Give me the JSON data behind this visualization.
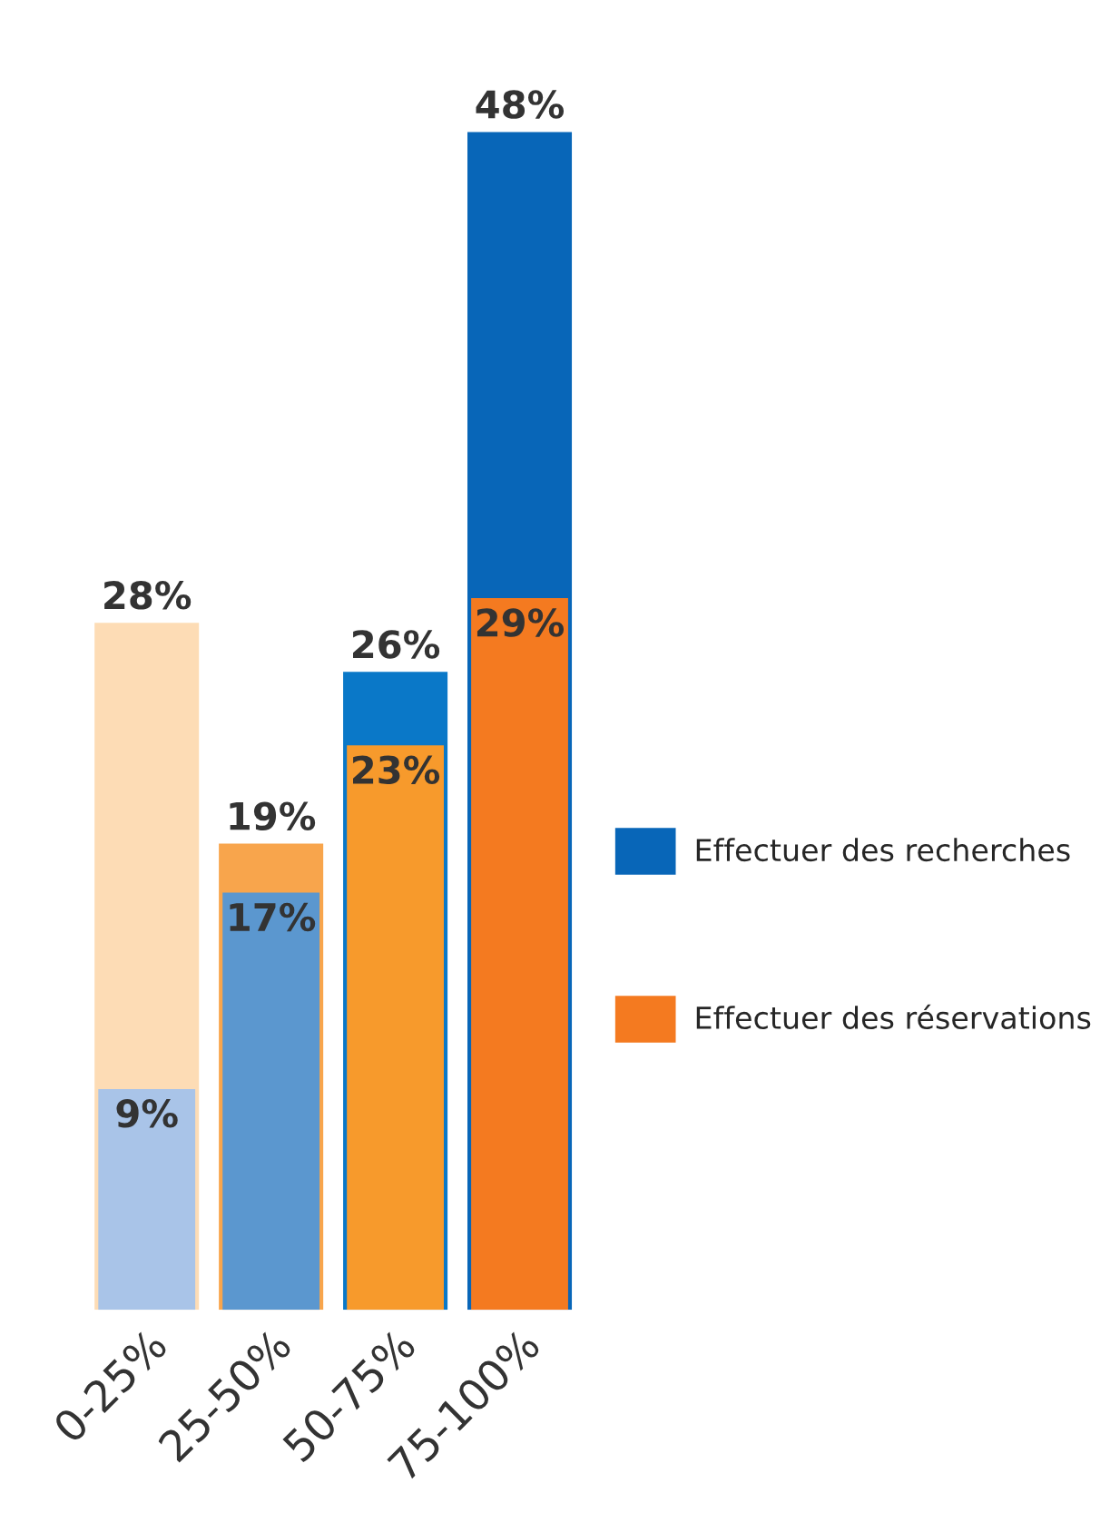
{
  "chart_data": {
    "type": "bar",
    "categories": [
      "0-25%",
      "25-50%",
      "50-75%",
      "75-100%"
    ],
    "series": [
      {
        "name": "Effectuer des recherches",
        "color": "#0866b8",
        "colors": [
          "#a9c4e8",
          "#5b97cf",
          "#0a78c8",
          "#0866b8"
        ],
        "values": [
          9,
          17,
          26,
          48
        ],
        "value_labels": [
          "9%",
          "17%",
          "26%",
          "48%"
        ]
      },
      {
        "name": "Effectuer des réservations",
        "color": "#f47a20",
        "colors": [
          "#fddcb5",
          "#f8a54c",
          "#f79a2c",
          "#f47a20"
        ],
        "values": [
          28,
          19,
          23,
          29
        ],
        "value_labels": [
          "28%",
          "19%",
          "23%",
          "29%"
        ]
      }
    ],
    "legend": "right",
    "grid": false
  }
}
